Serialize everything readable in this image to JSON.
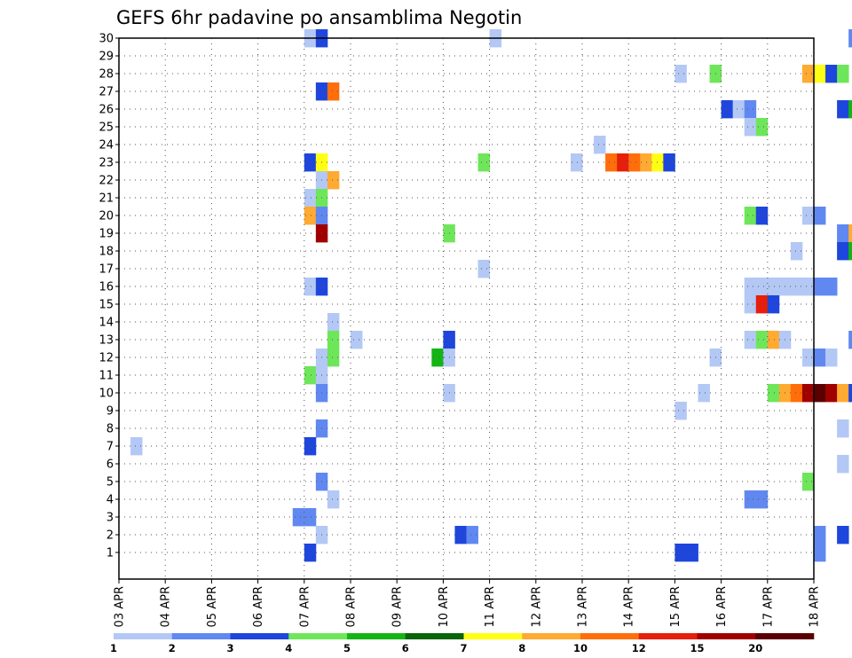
{
  "chart_data": {
    "type": "heatmap",
    "title": "GEFS 6hr padavine po ansamblima Negotin",
    "xlabel": "",
    "ylabel": "",
    "x_tick_labels": [
      "03 APR",
      "04 APR",
      "05 APR",
      "06 APR",
      "07 APR",
      "08 APR",
      "09 APR",
      "10 APR",
      "11 APR",
      "12 APR",
      "13 APR",
      "14 APR",
      "15 APR",
      "16 APR",
      "17 APR",
      "18 APR"
    ],
    "y_tick_labels": [
      "1",
      "2",
      "3",
      "4",
      "5",
      "6",
      "7",
      "8",
      "9",
      "10",
      "11",
      "12",
      "13",
      "14",
      "15",
      "16",
      "17",
      "18",
      "19",
      "20",
      "21",
      "22",
      "23",
      "24",
      "25",
      "26",
      "27",
      "28",
      "29",
      "30"
    ],
    "grid": true,
    "legend_placement": "bottom",
    "legend": {
      "labels": [
        "1",
        "2",
        "3",
        "4",
        "5",
        "6",
        "7",
        "8",
        "10",
        "12",
        "15",
        "20"
      ],
      "colors": [
        "#b4c8f5",
        "#6088f0",
        "#1e46dc",
        "#6ee65a",
        "#14b414",
        "#0a640a",
        "#ffff14",
        "#ffaa32",
        "#ff6e0a",
        "#e61e0a",
        "#a00000",
        "#5a0000"
      ]
    },
    "cells": [
      {
        "m": 30,
        "day": "07 APR",
        "slot": 0,
        "v": 1.5
      },
      {
        "m": 30,
        "day": "07 APR",
        "slot": 1,
        "v": 3.5
      },
      {
        "m": 30,
        "day": "11 APR",
        "slot": 0,
        "v": 1.5
      },
      {
        "m": 30,
        "day": "18 APR",
        "slot": 3,
        "v": 2.5
      },
      {
        "m": 28,
        "day": "15 APR",
        "slot": 0,
        "v": 1.5
      },
      {
        "m": 28,
        "day": "15 APR",
        "slot": 3,
        "v": 4.5
      },
      {
        "m": 28,
        "day": "17 APR",
        "slot": 3,
        "v": 9
      },
      {
        "m": 28,
        "day": "18 APR",
        "slot": 0,
        "v": 7.5
      },
      {
        "m": 28,
        "day": "18 APR",
        "slot": 1,
        "v": 3.5
      },
      {
        "m": 28,
        "day": "18 APR",
        "slot": 2,
        "v": 4.5
      },
      {
        "m": 27,
        "day": "07 APR",
        "slot": 1,
        "v": 3.5
      },
      {
        "m": 27,
        "day": "07 APR",
        "slot": 2,
        "v": 11
      },
      {
        "m": 26,
        "day": "16 APR",
        "slot": 0,
        "v": 3.5
      },
      {
        "m": 26,
        "day": "16 APR",
        "slot": 1,
        "v": 1.5
      },
      {
        "m": 26,
        "day": "16 APR",
        "slot": 2,
        "v": 2.5
      },
      {
        "m": 26,
        "day": "18 APR",
        "slot": 2,
        "v": 3.5
      },
      {
        "m": 26,
        "day": "18 APR",
        "slot": 3,
        "v": 5.5
      },
      {
        "m": 25,
        "day": "16 APR",
        "slot": 2,
        "v": 1.5
      },
      {
        "m": 25,
        "day": "16 APR",
        "slot": 3,
        "v": 4.5
      },
      {
        "m": 24,
        "day": "13 APR",
        "slot": 1,
        "v": 1.5
      },
      {
        "m": 23,
        "day": "07 APR",
        "slot": 0,
        "v": 3.5
      },
      {
        "m": 23,
        "day": "07 APR",
        "slot": 1,
        "v": 7.5
      },
      {
        "m": 23,
        "day": "10 APR",
        "slot": 3,
        "v": 4.5
      },
      {
        "m": 23,
        "day": "12 APR",
        "slot": 3,
        "v": 1.5
      },
      {
        "m": 23,
        "day": "13 APR",
        "slot": 2,
        "v": 11
      },
      {
        "m": 23,
        "day": "13 APR",
        "slot": 3,
        "v": 13
      },
      {
        "m": 23,
        "day": "14 APR",
        "slot": 0,
        "v": 11
      },
      {
        "m": 23,
        "day": "14 APR",
        "slot": 1,
        "v": 9
      },
      {
        "m": 23,
        "day": "14 APR",
        "slot": 2,
        "v": 7.5
      },
      {
        "m": 23,
        "day": "14 APR",
        "slot": 3,
        "v": 3.5
      },
      {
        "m": 22,
        "day": "07 APR",
        "slot": 1,
        "v": 1.5
      },
      {
        "m": 22,
        "day": "07 APR",
        "slot": 2,
        "v": 9
      },
      {
        "m": 21,
        "day": "07 APR",
        "slot": 0,
        "v": 1.5
      },
      {
        "m": 21,
        "day": "07 APR",
        "slot": 1,
        "v": 4.5
      },
      {
        "m": 20,
        "day": "07 APR",
        "slot": 0,
        "v": 9
      },
      {
        "m": 20,
        "day": "07 APR",
        "slot": 1,
        "v": 2.5
      },
      {
        "m": 20,
        "day": "16 APR",
        "slot": 2,
        "v": 4.5
      },
      {
        "m": 20,
        "day": "16 APR",
        "slot": 3,
        "v": 3.5
      },
      {
        "m": 20,
        "day": "17 APR",
        "slot": 3,
        "v": 1.5
      },
      {
        "m": 20,
        "day": "18 APR",
        "slot": 0,
        "v": 2.5
      },
      {
        "m": 19,
        "day": "07 APR",
        "slot": 1,
        "v": 17
      },
      {
        "m": 19,
        "day": "10 APR",
        "slot": 0,
        "v": 4.5
      },
      {
        "m": 19,
        "day": "18 APR",
        "slot": 2,
        "v": 2.5
      },
      {
        "m": 19,
        "day": "18 APR",
        "slot": 3,
        "v": 9
      },
      {
        "m": 18,
        "day": "17 APR",
        "slot": 2,
        "v": 1.5
      },
      {
        "m": 18,
        "day": "18 APR",
        "slot": 2,
        "v": 3.5
      },
      {
        "m": 18,
        "day": "18 APR",
        "slot": 3,
        "v": 5.5
      },
      {
        "m": 17,
        "day": "10 APR",
        "slot": 3,
        "v": 1.5
      },
      {
        "m": 16,
        "day": "07 APR",
        "slot": 0,
        "v": 1.5
      },
      {
        "m": 16,
        "day": "07 APR",
        "slot": 1,
        "v": 3.5
      },
      {
        "m": 16,
        "day": "16 APR",
        "slot": 2,
        "v": 1.5
      },
      {
        "m": 16,
        "day": "16 APR",
        "slot": 3,
        "v": 1.5
      },
      {
        "m": 16,
        "day": "17 APR",
        "slot": 0,
        "v": 1.5
      },
      {
        "m": 16,
        "day": "17 APR",
        "slot": 1,
        "v": 1.5
      },
      {
        "m": 16,
        "day": "17 APR",
        "slot": 2,
        "v": 1.5
      },
      {
        "m": 16,
        "day": "17 APR",
        "slot": 3,
        "v": 1.5
      },
      {
        "m": 16,
        "day": "18 APR",
        "slot": 0,
        "v": 2.5
      },
      {
        "m": 16,
        "day": "18 APR",
        "slot": 1,
        "v": 2.5
      },
      {
        "m": 15,
        "day": "16 APR",
        "slot": 2,
        "v": 1.5
      },
      {
        "m": 15,
        "day": "16 APR",
        "slot": 3,
        "v": 13
      },
      {
        "m": 15,
        "day": "17 APR",
        "slot": 0,
        "v": 3.5
      },
      {
        "m": 14,
        "day": "07 APR",
        "slot": 2,
        "v": 1.5
      },
      {
        "m": 13,
        "day": "07 APR",
        "slot": 2,
        "v": 4.5
      },
      {
        "m": 13,
        "day": "08 APR",
        "slot": 0,
        "v": 1.5
      },
      {
        "m": 13,
        "day": "10 APR",
        "slot": 0,
        "v": 3.5
      },
      {
        "m": 13,
        "day": "16 APR",
        "slot": 2,
        "v": 1.5
      },
      {
        "m": 13,
        "day": "16 APR",
        "slot": 3,
        "v": 4.5
      },
      {
        "m": 13,
        "day": "17 APR",
        "slot": 0,
        "v": 9
      },
      {
        "m": 13,
        "day": "17 APR",
        "slot": 1,
        "v": 1.5
      },
      {
        "m": 13,
        "day": "18 APR",
        "slot": 3,
        "v": 2.5
      },
      {
        "m": 12,
        "day": "07 APR",
        "slot": 1,
        "v": 1.5
      },
      {
        "m": 12,
        "day": "07 APR",
        "slot": 2,
        "v": 4.5
      },
      {
        "m": 12,
        "day": "09 APR",
        "slot": 3,
        "v": 5.5
      },
      {
        "m": 12,
        "day": "10 APR",
        "slot": 0,
        "v": 1.5
      },
      {
        "m": 12,
        "day": "15 APR",
        "slot": 3,
        "v": 1.5
      },
      {
        "m": 12,
        "day": "17 APR",
        "slot": 3,
        "v": 1.5
      },
      {
        "m": 12,
        "day": "18 APR",
        "slot": 0,
        "v": 2.5
      },
      {
        "m": 12,
        "day": "18 APR",
        "slot": 1,
        "v": 1.5
      },
      {
        "m": 11,
        "day": "07 APR",
        "slot": 0,
        "v": 4.5
      },
      {
        "m": 11,
        "day": "07 APR",
        "slot": 1,
        "v": 1.5
      },
      {
        "m": 10,
        "day": "07 APR",
        "slot": 1,
        "v": 2.5
      },
      {
        "m": 10,
        "day": "10 APR",
        "slot": 0,
        "v": 1.5
      },
      {
        "m": 10,
        "day": "15 APR",
        "slot": 2,
        "v": 1.5
      },
      {
        "m": 10,
        "day": "17 APR",
        "slot": 0,
        "v": 4.5
      },
      {
        "m": 10,
        "day": "17 APR",
        "slot": 1,
        "v": 9
      },
      {
        "m": 10,
        "day": "17 APR",
        "slot": 2,
        "v": 11
      },
      {
        "m": 10,
        "day": "17 APR",
        "slot": 3,
        "v": 17
      },
      {
        "m": 10,
        "day": "18 APR",
        "slot": 0,
        "v": 22
      },
      {
        "m": 10,
        "day": "18 APR",
        "slot": 1,
        "v": 17
      },
      {
        "m": 10,
        "day": "18 APR",
        "slot": 2,
        "v": 9
      },
      {
        "m": 10,
        "day": "18 APR",
        "slot": 3,
        "v": 3.5
      },
      {
        "m": 9,
        "day": "15 APR",
        "slot": 0,
        "v": 1.5
      },
      {
        "m": 8,
        "day": "07 APR",
        "slot": 1,
        "v": 2.5
      },
      {
        "m": 8,
        "day": "18 APR",
        "slot": 2,
        "v": 1.5
      },
      {
        "m": 7,
        "day": "03 APR",
        "slot": 1,
        "v": 1.5
      },
      {
        "m": 7,
        "day": "07 APR",
        "slot": 0,
        "v": 3.5
      },
      {
        "m": 6,
        "day": "18 APR",
        "slot": 2,
        "v": 1.5
      },
      {
        "m": 5,
        "day": "07 APR",
        "slot": 1,
        "v": 2.5
      },
      {
        "m": 5,
        "day": "17 APR",
        "slot": 3,
        "v": 4.5
      },
      {
        "m": 4,
        "day": "07 APR",
        "slot": 2,
        "v": 1.5
      },
      {
        "m": 4,
        "day": "16 APR",
        "slot": 2,
        "v": 2.5
      },
      {
        "m": 4,
        "day": "16 APR",
        "slot": 3,
        "v": 2.5
      },
      {
        "m": 3,
        "day": "06 APR",
        "slot": 3,
        "v": 2.5
      },
      {
        "m": 3,
        "day": "07 APR",
        "slot": 0,
        "v": 2.5
      },
      {
        "m": 2,
        "day": "07 APR",
        "slot": 1,
        "v": 1.5
      },
      {
        "m": 2,
        "day": "10 APR",
        "slot": 1,
        "v": 3.5
      },
      {
        "m": 2,
        "day": "10 APR",
        "slot": 2,
        "v": 2.5
      },
      {
        "m": 2,
        "day": "18 APR",
        "slot": 0,
        "v": 2.5
      },
      {
        "m": 2,
        "day": "18 APR",
        "slot": 2,
        "v": 3.5
      },
      {
        "m": 1,
        "day": "07 APR",
        "slot": 0,
        "v": 3.5
      },
      {
        "m": 1,
        "day": "15 APR",
        "slot": 0,
        "v": 3.5
      },
      {
        "m": 1,
        "day": "15 APR",
        "slot": 1,
        "v": 3.5
      },
      {
        "m": 1,
        "day": "18 APR",
        "slot": 0,
        "v": 2.5
      }
    ]
  }
}
